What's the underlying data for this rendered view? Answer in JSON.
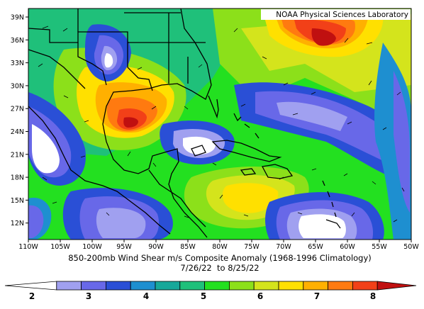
{
  "credit": "NOAA Physical Sciences Laboratory",
  "caption_line1": "850-200mb Wind Shear m/s Composite Anomaly (1968-1996 Climatology)",
  "caption_line2": "7/26/22  to 8/25/22",
  "x_ticks": [
    "110W",
    "105W",
    "100W",
    "95W",
    "90W",
    "85W",
    "80W",
    "75W",
    "70W",
    "65W",
    "60W",
    "55W",
    "50W"
  ],
  "y_ticks": [
    "39N",
    "36N",
    "33N",
    "30N",
    "27N",
    "24N",
    "21N",
    "18N",
    "15N",
    "12N"
  ],
  "colorbar": {
    "labels": [
      "2",
      "3",
      "4",
      "5",
      "6",
      "7",
      "8"
    ],
    "colors": [
      "#ffffff",
      "#a0a0f0",
      "#6868e8",
      "#2a4fd6",
      "#1e8fd0",
      "#17a89a",
      "#1fc07a",
      "#23e020",
      "#8ce01a",
      "#d4e41c",
      "#ffe000",
      "#ffb000",
      "#ff7a10",
      "#f24018",
      "#c01010"
    ]
  },
  "chart_data": {
    "type": "heatmap",
    "variable": "850-200mb Wind Shear m/s Composite Anomaly",
    "period": "7/26/22 to 8/25/22",
    "xlim": [
      -110,
      -50
    ],
    "ylim": [
      10,
      40
    ],
    "levels": [
      2,
      3,
      4,
      5,
      6,
      7,
      8
    ],
    "notable_maxima": [
      {
        "lon": -65,
        "lat": 36,
        "value": 8
      },
      {
        "lon": -93,
        "lat": 25,
        "value": 8
      }
    ]
  }
}
